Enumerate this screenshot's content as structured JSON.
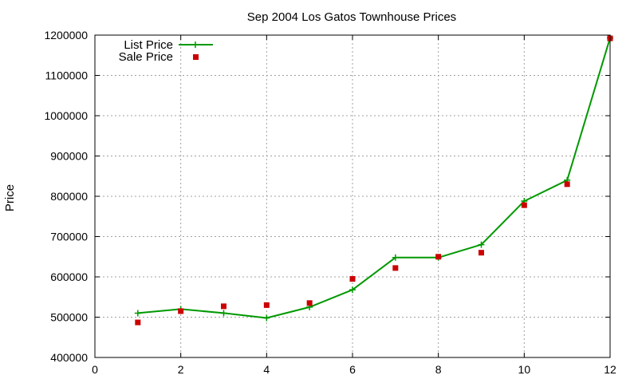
{
  "chart_data": {
    "type": "line",
    "title": "Sep 2004 Los Gatos Townhouse Prices",
    "xlabel": "",
    "ylabel": "Price",
    "xlim": [
      0,
      12
    ],
    "ylim": [
      400000,
      1200000
    ],
    "xticks": [
      0,
      2,
      4,
      6,
      8,
      10,
      12
    ],
    "yticks": [
      400000,
      500000,
      600000,
      700000,
      800000,
      900000,
      1000000,
      1100000,
      1200000
    ],
    "grid": true,
    "legend_position": "top-left",
    "series": [
      {
        "name": "List Price",
        "style": "line+cross-markers",
        "color": "#009900",
        "x": [
          1,
          2,
          3,
          4,
          5,
          6,
          7,
          8,
          9,
          10,
          11,
          12
        ],
        "y": [
          510000,
          520000,
          510000,
          498000,
          525000,
          568000,
          648000,
          648000,
          680000,
          788000,
          840000,
          1193000
        ]
      },
      {
        "name": "Sale Price",
        "style": "square-points",
        "color": "#cc0000",
        "x": [
          1,
          2,
          3,
          4,
          5,
          6,
          7,
          8,
          9,
          10,
          11,
          12
        ],
        "y": [
          487000,
          515000,
          527000,
          530000,
          535000,
          595000,
          622000,
          650000,
          660000,
          778000,
          830000,
          1192000
        ]
      }
    ]
  }
}
